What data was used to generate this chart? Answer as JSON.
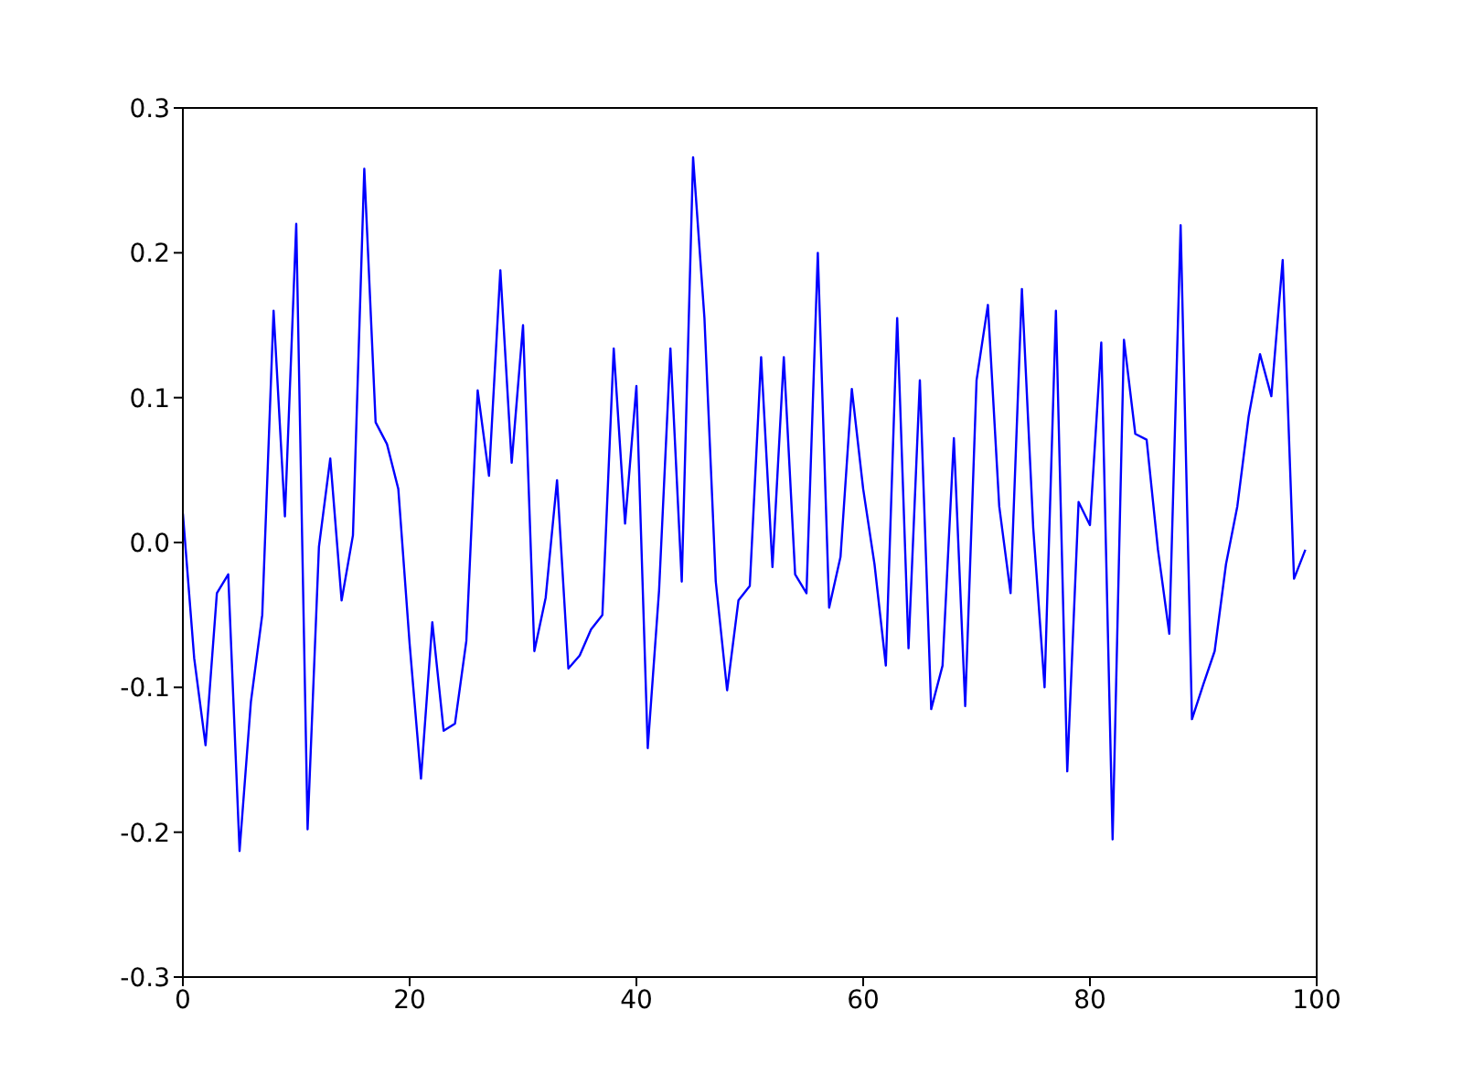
{
  "chart_data": {
    "type": "line",
    "x": [
      0,
      1,
      2,
      3,
      4,
      5,
      6,
      7,
      8,
      9,
      10,
      11,
      12,
      13,
      14,
      15,
      16,
      17,
      18,
      19,
      20,
      21,
      22,
      23,
      24,
      25,
      26,
      27,
      28,
      29,
      30,
      31,
      32,
      33,
      34,
      35,
      36,
      37,
      38,
      39,
      40,
      41,
      42,
      43,
      44,
      45,
      46,
      47,
      48,
      49,
      50,
      51,
      52,
      53,
      54,
      55,
      56,
      57,
      58,
      59,
      60,
      61,
      62,
      63,
      64,
      65,
      66,
      67,
      68,
      69,
      70,
      71,
      72,
      73,
      74,
      75,
      76,
      77,
      78,
      79,
      80,
      81,
      82,
      83,
      84,
      85,
      86,
      87,
      88,
      89,
      90,
      91,
      92,
      93,
      94,
      95,
      96,
      97,
      98,
      99
    ],
    "series": [
      {
        "color": "#0000ff",
        "values": [
          0.02,
          -0.08,
          -0.14,
          -0.035,
          -0.022,
          -0.213,
          -0.11,
          -0.05,
          0.16,
          0.018,
          0.22,
          -0.198,
          -0.003,
          0.058,
          -0.04,
          0.005,
          0.258,
          0.083,
          0.068,
          0.037,
          -0.07,
          -0.163,
          -0.055,
          -0.13,
          -0.125,
          -0.068,
          0.105,
          0.046,
          0.188,
          0.055,
          0.15,
          -0.075,
          -0.038,
          0.043,
          -0.087,
          -0.078,
          -0.06,
          -0.05,
          0.134,
          0.013,
          0.108,
          -0.142,
          -0.033,
          0.134,
          -0.027,
          0.266,
          0.155,
          -0.027,
          -0.102,
          -0.04,
          -0.03,
          0.128,
          -0.017,
          0.128,
          -0.022,
          -0.035,
          0.2,
          -0.045,
          -0.01,
          0.106,
          0.037,
          -0.015,
          -0.085,
          0.155,
          -0.073,
          0.112,
          -0.115,
          -0.085,
          0.072,
          -0.113,
          0.112,
          0.164,
          0.025,
          -0.035,
          0.175,
          0.01,
          -0.1,
          0.16,
          -0.158,
          0.028,
          0.012,
          0.138,
          -0.205,
          0.14,
          0.075,
          0.071,
          -0.005,
          -0.063,
          0.219,
          -0.122,
          -0.098,
          -0.075,
          -0.015,
          0.025,
          0.087,
          0.13,
          0.101,
          0.195,
          -0.025,
          -0.005
        ]
      }
    ],
    "xlim": [
      0,
      100
    ],
    "xticks": [
      0,
      20,
      40,
      60,
      80,
      100
    ],
    "ylim": [
      -0.3,
      0.3
    ],
    "yticks": [
      -0.3,
      -0.2,
      -0.1,
      {
        "value": 0,
        "label": "0.0"
      },
      0.1,
      0.2,
      0.3
    ],
    "grid": false,
    "marker": "none",
    "line_style": "solid"
  }
}
